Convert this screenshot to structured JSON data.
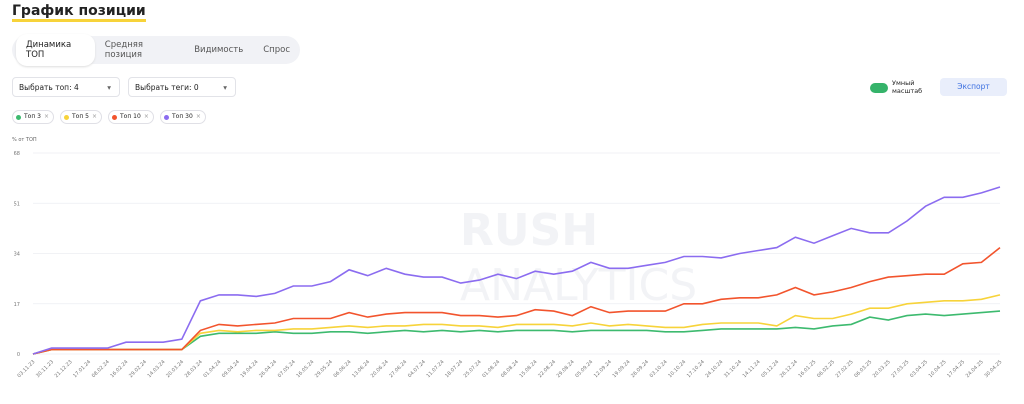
{
  "header": {
    "title": "График позиции"
  },
  "tabs": [
    "Динамика ТОП",
    "Средняя позиция",
    "Видимость",
    "Спрос"
  ],
  "filters": [
    "Выбрать топ: 4",
    "Выбрать теги: 0"
  ],
  "toggle_label": "Умный масштаб",
  "export_button": "Экспорт",
  "watermark": [
    "RUSH",
    "ANALYTICS"
  ],
  "chart_data": {
    "type": "line",
    "y_label": "% от ТОП",
    "categories": [
      "03.11.23",
      "30.11.23",
      "21.12.23",
      "17.01.24",
      "08.02.24",
      "16.02.24",
      "29.02.24",
      "14.03.24",
      "20.03.24",
      "28.03.24",
      "01.04.24",
      "09.04.24",
      "19.04.24",
      "26.04.24",
      "07.05.24",
      "16.05.24",
      "29.05.24",
      "06.06.24",
      "13.06.24",
      "20.06.24",
      "27.06.24",
      "04.07.24",
      "11.07.24",
      "18.07.24",
      "25.07.24",
      "01.08.24",
      "08.08.24",
      "15.08.24",
      "22.08.24",
      "29.08.24",
      "05.09.24",
      "12.09.24",
      "19.09.24",
      "26.09.24",
      "03.10.24",
      "10.10.24",
      "17.10.24",
      "24.10.24",
      "31.10.24",
      "14.11.24",
      "05.12.24",
      "26.12.24",
      "16.01.25",
      "06.02.25",
      "27.02.25",
      "06.03.25",
      "20.03.25",
      "27.03.25",
      "03.04.25",
      "10.04.25",
      "17.04.25",
      "24.04.25",
      "30.04.25"
    ],
    "series": [
      {
        "name": "Топ 3",
        "color": "#3dba6f",
        "values": [
          0,
          1.5,
          1.5,
          1.5,
          1.5,
          1.5,
          1.5,
          1.5,
          1.5,
          6,
          7,
          7,
          7,
          7.5,
          7,
          7,
          7.5,
          7.5,
          7,
          7.5,
          8,
          7.5,
          8,
          7.5,
          8,
          7.5,
          8,
          8,
          8,
          7.5,
          8,
          8,
          8,
          8,
          7.5,
          7.5,
          8,
          8.5,
          8.5,
          8.5,
          8.5,
          9,
          8.5,
          9.5,
          10,
          12.5,
          11.5,
          13,
          13.5,
          13,
          13.5,
          14,
          14.5
        ]
      },
      {
        "name": "Топ 5",
        "color": "#f7d33a",
        "values": [
          0,
          1.5,
          1.5,
          1.5,
          1.5,
          1.5,
          1.5,
          1.5,
          1.5,
          7,
          8,
          7.5,
          8,
          8,
          8.5,
          8.5,
          9,
          9.5,
          9,
          9.5,
          9.5,
          10,
          10,
          9.5,
          9.5,
          9,
          10,
          10,
          10,
          9.5,
          10.5,
          9.5,
          10,
          9.5,
          9,
          9,
          10,
          10.5,
          10.5,
          10.5,
          9.5,
          13,
          12,
          12,
          13.5,
          15.5,
          15.5,
          17,
          17.5,
          18,
          18,
          18.5,
          20
        ]
      },
      {
        "name": "Топ 10",
        "color": "#f2542d",
        "values": [
          0,
          1.5,
          1.5,
          1.5,
          1.5,
          1.5,
          1.5,
          1.5,
          1.5,
          8,
          10,
          9.5,
          10,
          10.5,
          12,
          12,
          12,
          14,
          12.5,
          13.5,
          14,
          14,
          14,
          13,
          13,
          12.5,
          13,
          15,
          14.5,
          13,
          16,
          14,
          14.5,
          14.5,
          14.5,
          17,
          17,
          18.5,
          19,
          19,
          20,
          22.5,
          20,
          21,
          22.5,
          24.5,
          26,
          26.5,
          27,
          27,
          30.5,
          31,
          36
        ]
      },
      {
        "name": "Топ 30",
        "color": "#8b6cf0",
        "values": [
          0,
          2,
          2,
          2,
          2,
          4,
          4,
          4,
          5,
          18,
          20,
          20,
          19.5,
          20.5,
          23,
          23,
          24.5,
          28.5,
          26.5,
          29,
          27,
          26,
          26,
          24,
          25,
          27,
          25.5,
          28,
          27,
          28,
          31,
          29,
          29,
          30,
          31,
          33,
          33,
          32.5,
          34,
          35,
          36,
          39.5,
          37.5,
          40,
          42.5,
          41,
          41,
          45,
          50,
          53,
          53,
          54.5,
          56.5
        ]
      }
    ],
    "ylim": [
      0,
      68
    ],
    "yticks": [
      0,
      17,
      34,
      51,
      68
    ],
    "grid": true
  }
}
